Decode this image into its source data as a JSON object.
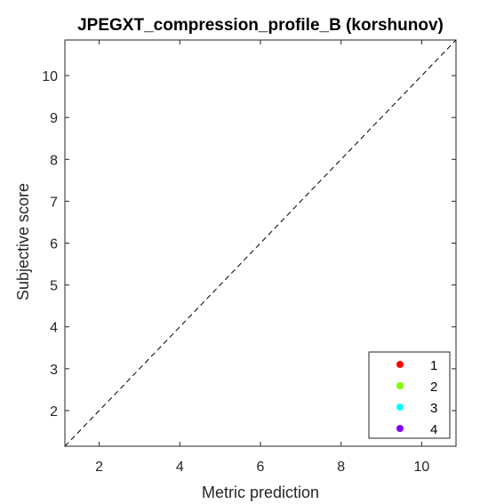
{
  "chart_data": {
    "type": "scatter",
    "title": "JPEGXT_compression_profile_B (korshunov)",
    "xlabel": "Metric prediction",
    "ylabel": "Subjective score",
    "xlim": [
      1.15,
      10.85
    ],
    "ylim": [
      1.15,
      10.85
    ],
    "xticks": [
      2,
      4,
      6,
      8,
      10
    ],
    "yticks": [
      2,
      3,
      4,
      5,
      6,
      7,
      8,
      9,
      10
    ],
    "grid": false,
    "reference_line": {
      "style": "dashed",
      "from": [
        1.15,
        1.15
      ],
      "to": [
        10.85,
        10.85
      ]
    },
    "legend_position": "bottom-right",
    "series": [
      {
        "name": "1",
        "color": "#ff0000",
        "points": []
      },
      {
        "name": "2",
        "color": "#80ff00",
        "points": []
      },
      {
        "name": "3",
        "color": "#00ffff",
        "points": []
      },
      {
        "name": "4",
        "color": "#8000ff",
        "points": []
      }
    ]
  }
}
